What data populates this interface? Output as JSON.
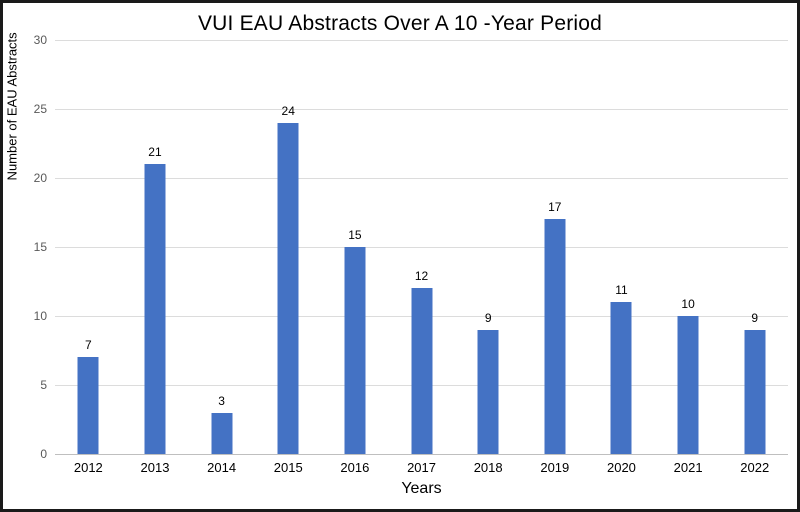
{
  "chart_data": {
    "type": "bar",
    "title": "VUI EAU Abstracts Over A 10 -Year Period",
    "xlabel": "Years",
    "ylabel": "Number of EAU Abstracts",
    "categories": [
      "2012",
      "2013",
      "2014",
      "2015",
      "2016",
      "2017",
      "2018",
      "2019",
      "2020",
      "2021",
      "2022"
    ],
    "values": [
      7,
      21,
      3,
      24,
      15,
      12,
      9,
      17,
      11,
      10,
      9
    ],
    "ylim": [
      0,
      30
    ],
    "ytick_step": 5,
    "ytick_labels": [
      "0",
      "5",
      "10",
      "15",
      "20",
      "25",
      "30"
    ],
    "grid": true,
    "legend": "none",
    "data_labels": true,
    "colors": {
      "bar_fill": "#4472C4",
      "gridline": "#dcdcdc",
      "axis_line": "#bfbfbf",
      "ytick_text": "#595959",
      "text": "#000000",
      "frame_border": "#1a1a1a"
    }
  }
}
